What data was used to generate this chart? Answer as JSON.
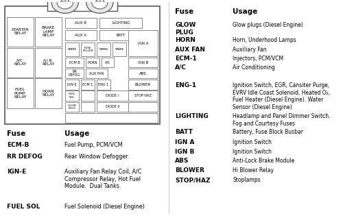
{
  "bg_color": "#ffffff",
  "box_facecolor": "#ffffff",
  "box_edge": "#888888",
  "left_table": {
    "header": [
      "Fuse",
      "Usage"
    ],
    "rows": [
      [
        "ECM-B",
        "Fuel Pump, PCM/VCM"
      ],
      [
        "RR DEFOG",
        "Rear Window Defogger"
      ],
      [
        "IGN-E",
        "Auxiliary Fan Relay Coil, A/C\nCompressor Relay, Hot Fuel\nModule.  Dual Tanks."
      ],
      [
        "FUEL SOL",
        "Fuel Solenoid (Diesel Engine)"
      ]
    ]
  },
  "right_table": {
    "header": [
      "Fuse",
      "Usage"
    ],
    "rows": [
      [
        "GLOW\nPLUG",
        "Glow plugs (Diesel Engine)"
      ],
      [
        "HORN",
        "Horn, Underhood Lamps"
      ],
      [
        "AUX FAN",
        "Auxiliary Fan"
      ],
      [
        "ECM-1",
        "Injectors, PCM/VCM"
      ],
      [
        "A/C",
        "Air Conditioning"
      ],
      [
        "ENG-1",
        "Ignition Switch, EGR, Cansiter Purge,\nEVRV Idle Coast Solenoid, Heated O₂,\nFuel Heater (Diesel Engine). Water\nSensor (Diesel Engine)"
      ],
      [
        "LIGHTING",
        "Headlamp and Panel Dimmer Switch.\nFog and Courtesy Fuses"
      ],
      [
        "BATT",
        "Battery, Fuse Block Busbar"
      ],
      [
        "IGN A",
        "Ignition Switch"
      ],
      [
        "IGN B",
        "Ignition Switch"
      ],
      [
        "ABS",
        "Anti-Lock Brake Module"
      ],
      [
        "BLOWER",
        "Hi Blower Relay"
      ],
      [
        "STOP/HAZ",
        "Stoplamps"
      ]
    ]
  }
}
